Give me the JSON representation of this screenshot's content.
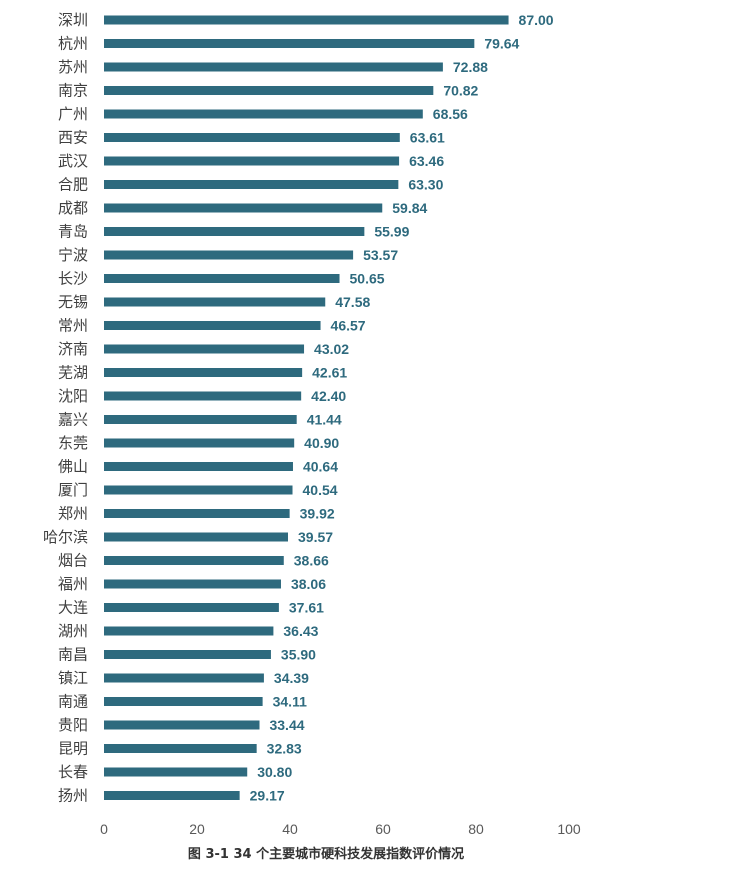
{
  "chart_data": {
    "type": "bar",
    "orientation": "horizontal",
    "title": "图 3-1 34 个主要城市硬科技发展指数评价情况",
    "xlabel": "",
    "ylabel": "",
    "xlim": [
      0,
      100
    ],
    "xticks": [
      0,
      20,
      40,
      60,
      80,
      100
    ],
    "grid": false,
    "bar_color": "#2e6a7e",
    "categories": [
      "深圳",
      "杭州",
      "苏州",
      "南京",
      "广州",
      "西安",
      "武汉",
      "合肥",
      "成都",
      "青岛",
      "宁波",
      "长沙",
      "无锡",
      "常州",
      "济南",
      "芜湖",
      "沈阳",
      "嘉兴",
      "东莞",
      "佛山",
      "厦门",
      "郑州",
      "哈尔滨",
      "烟台",
      "福州",
      "大连",
      "湖州",
      "南昌",
      "镇江",
      "南通",
      "贵阳",
      "昆明",
      "长春",
      "扬州"
    ],
    "values": [
      87.0,
      79.64,
      72.88,
      70.82,
      68.56,
      63.61,
      63.46,
      63.3,
      59.84,
      55.99,
      53.57,
      50.65,
      47.58,
      46.57,
      43.02,
      42.61,
      42.4,
      41.44,
      40.9,
      40.64,
      40.54,
      39.92,
      39.57,
      38.66,
      38.06,
      37.61,
      36.43,
      35.9,
      34.39,
      34.11,
      33.44,
      32.83,
      30.8,
      29.17
    ],
    "value_labels": [
      "87.00",
      "79.64",
      "72.88",
      "70.82",
      "68.56",
      "63.61",
      "63.46",
      "63.30",
      "59.84",
      "55.99",
      "53.57",
      "50.65",
      "47.58",
      "46.57",
      "43.02",
      "42.61",
      "42.40",
      "41.44",
      "40.90",
      "40.64",
      "40.54",
      "39.92",
      "39.57",
      "38.66",
      "38.06",
      "37.61",
      "36.43",
      "35.90",
      "34.39",
      "34.11",
      "33.44",
      "32.83",
      "30.80",
      "29.17"
    ]
  }
}
